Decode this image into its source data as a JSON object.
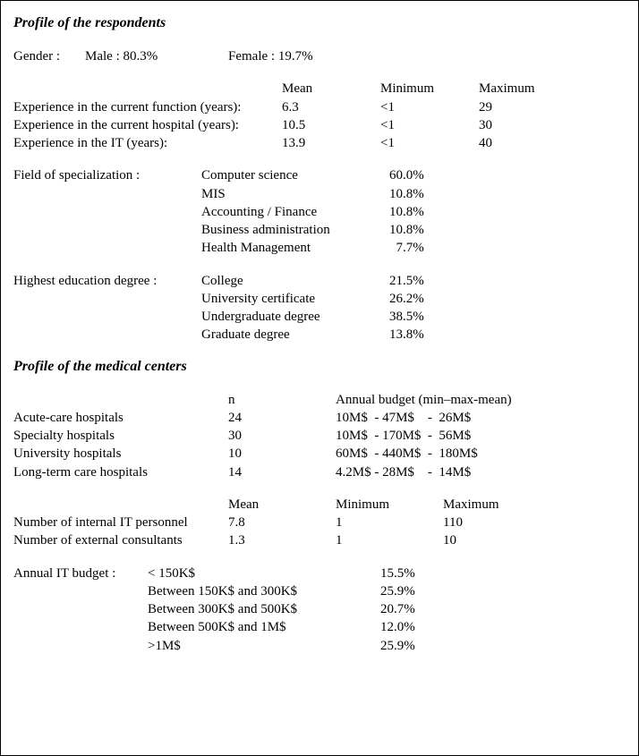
{
  "section1": {
    "title": "Profile of the respondents",
    "gender": {
      "label": "Gender :",
      "male": "Male : 80.3%",
      "female": "Female : 19.7%"
    },
    "expHeaders": {
      "mean": "Mean",
      "min": "Minimum",
      "max": "Maximum"
    },
    "experience": [
      {
        "label": "Experience in the current function (years):",
        "mean": "6.3",
        "min": "<1",
        "max": "29"
      },
      {
        "label": "Experience in the current hospital (years):",
        "mean": "10.5",
        "min": "<1",
        "max": "30"
      },
      {
        "label": "Experience in the IT (years):",
        "mean": "13.9",
        "min": "<1",
        "max": "40"
      }
    ],
    "fieldLabel": "Field of specialization :",
    "fields": [
      {
        "name": "Computer science",
        "pct": "60.0%"
      },
      {
        "name": "MIS",
        "pct": "10.8%"
      },
      {
        "name": "Accounting / Finance",
        "pct": "10.8%"
      },
      {
        "name": "Business administration",
        "pct": "10.8%"
      },
      {
        "name": "Health Management",
        "pct": "  7.7%"
      }
    ],
    "eduLabel": "Highest education degree :",
    "edu": [
      {
        "name": "College",
        "pct": "21.5%"
      },
      {
        "name": "University certificate",
        "pct": "26.2%"
      },
      {
        "name": "Undergraduate degree",
        "pct": "38.5%"
      },
      {
        "name": "Graduate degree",
        "pct": "13.8%"
      }
    ]
  },
  "section2": {
    "title": "Profile of the medical centers",
    "mcHeaders": {
      "n": "n",
      "budget": "Annual budget (min–max-mean)"
    },
    "centers": [
      {
        "name": "Acute-care hospitals",
        "n": "24",
        "budget": "10M$  - 47M$    -  26M$"
      },
      {
        "name": "Specialty hospitals",
        "n": "30",
        "budget": "10M$  - 170M$  -  56M$"
      },
      {
        "name": "University hospitals",
        "n": "10",
        "budget": "60M$  - 440M$  -  180M$"
      },
      {
        "name": "Long-term care hospitals",
        "n": "14",
        "budget": "4.2M$ - 28M$    -  14M$"
      }
    ],
    "itHeaders": {
      "mean": "Mean",
      "min": "Minimum",
      "max": "Maximum"
    },
    "itRows": [
      {
        "label": "Number of internal IT personnel",
        "mean": "7.8",
        "min": "1",
        "max": "110"
      },
      {
        "label": "Number of external consultants",
        "mean": "1.3",
        "min": "1",
        "max": "10"
      }
    ],
    "budgetLabel": "Annual IT budget :",
    "budgets": [
      {
        "range": "< 150K$",
        "pct": "15.5%"
      },
      {
        "range": "Between 150K$ and 300K$",
        "pct": "25.9%"
      },
      {
        "range": "Between 300K$ and 500K$",
        "pct": "20.7%"
      },
      {
        "range": "Between 500K$ and 1M$",
        "pct": "12.0%"
      },
      {
        "range": ">1M$",
        "pct": "25.9%"
      }
    ]
  }
}
